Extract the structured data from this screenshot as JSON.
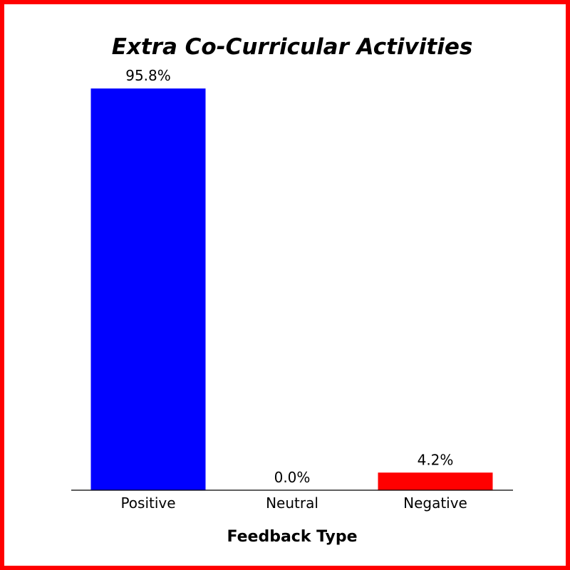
{
  "chart_data": {
    "type": "bar",
    "title": "Extra Co-Curricular Activities",
    "xlabel": "Feedback Type",
    "ylabel": "",
    "categories": [
      "Positive",
      "Neutral",
      "Negative"
    ],
    "values": [
      95.8,
      0.0,
      4.2
    ],
    "data_labels": [
      "95.8%",
      "0.0%",
      "4.2%"
    ],
    "colors": [
      "#0000ff",
      "#0000ff",
      "#ff0000"
    ],
    "ylim": [
      0,
      100
    ],
    "grid": false,
    "legend": "none"
  },
  "theme": {
    "border_color": "#ff0000",
    "axis_color": "#000000"
  }
}
